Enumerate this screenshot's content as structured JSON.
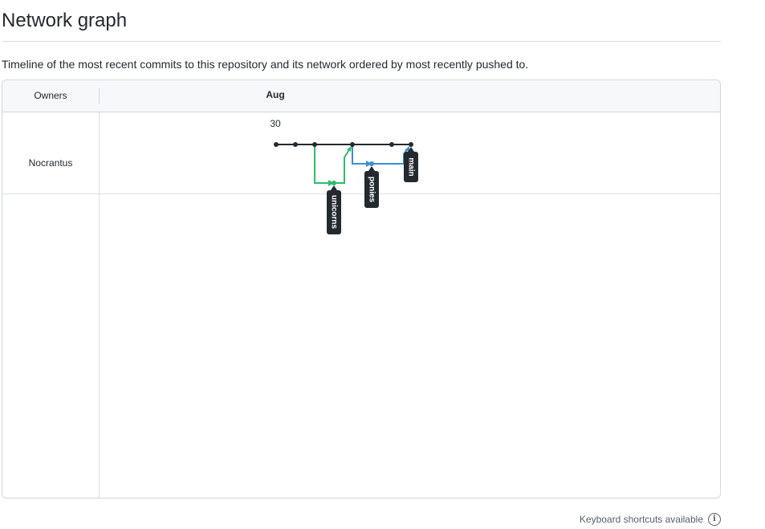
{
  "page": {
    "title": "Network graph",
    "description": "Timeline of the most recent commits to this repository and its network ordered by most recently pushed to."
  },
  "graph": {
    "header": {
      "owners_label": "Owners",
      "month_label": "Aug"
    },
    "day_label": "30",
    "owners": [
      {
        "name": "Nocrantus"
      }
    ],
    "branches": [
      {
        "name": "main",
        "color": "#24292f"
      },
      {
        "name": "unicorns",
        "color": "#2ebd6b"
      },
      {
        "name": "ponies",
        "color": "#3b8fd1"
      }
    ],
    "colors": {
      "main": "#24292f",
      "unicorns": "#2ebd6b",
      "ponies": "#3b8fd1",
      "label_bg": "#24292f",
      "label_fg": "#ffffff"
    }
  },
  "footer": {
    "shortcuts_text": "Keyboard shortcuts available",
    "info_icon": "info-icon"
  }
}
